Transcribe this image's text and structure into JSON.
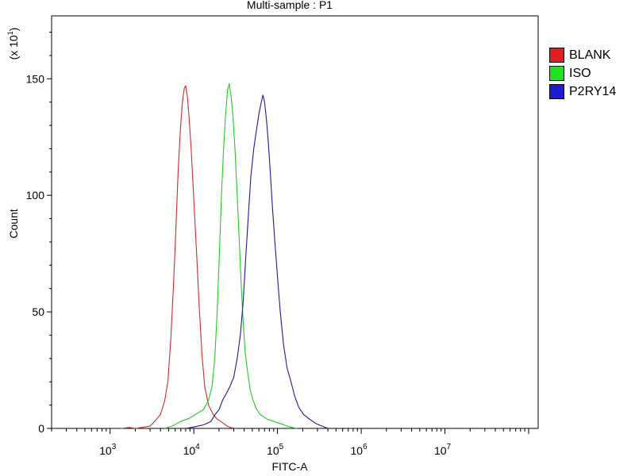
{
  "chart_data": {
    "type": "line",
    "title": "Multi-sample : P1",
    "xlabel": "FITC-A",
    "ylabel": "Count",
    "y_multiplier_label": "(x 10",
    "y_multiplier_exp": "1",
    "x_scale": "log",
    "xlim": [
      200,
      130000000
    ],
    "ylim": [
      0,
      177
    ],
    "x_ticks": [
      {
        "base": "10",
        "exp": "3",
        "value": 1000
      },
      {
        "base": "10",
        "exp": "4",
        "value": 10000
      },
      {
        "base": "10",
        "exp": "5",
        "value": 100000
      },
      {
        "base": "10",
        "exp": "6",
        "value": 1000000
      },
      {
        "base": "10",
        "exp": "7",
        "value": 10000000
      }
    ],
    "y_ticks": [
      {
        "label": "0",
        "value": 0
      },
      {
        "label": "50",
        "value": 50
      },
      {
        "label": "100",
        "value": 100
      },
      {
        "label": "150",
        "value": 150
      }
    ],
    "legend_position": "right",
    "series": [
      {
        "name": "BLANK",
        "color": "#d42a2a",
        "points": [
          [
            1350,
            0
          ],
          [
            1700,
            0.4
          ],
          [
            2000,
            0
          ],
          [
            2600,
            0.6
          ],
          [
            3000,
            1
          ],
          [
            3400,
            3
          ],
          [
            4000,
            6
          ],
          [
            4500,
            12
          ],
          [
            4900,
            20
          ],
          [
            5300,
            38
          ],
          [
            5700,
            60
          ],
          [
            6100,
            85
          ],
          [
            6500,
            110
          ],
          [
            6900,
            128
          ],
          [
            7300,
            140
          ],
          [
            7700,
            146
          ],
          [
            8000,
            147
          ],
          [
            8400,
            142
          ],
          [
            8800,
            133
          ],
          [
            9300,
            120
          ],
          [
            10000,
            98
          ],
          [
            10800,
            75
          ],
          [
            11600,
            52
          ],
          [
            12500,
            32
          ],
          [
            13500,
            18
          ],
          [
            15000,
            10
          ],
          [
            17000,
            6
          ],
          [
            19000,
            4
          ],
          [
            22000,
            2.5
          ],
          [
            25000,
            1
          ],
          [
            28000,
            0.3
          ],
          [
            32000,
            0
          ]
        ]
      },
      {
        "name": "ISO",
        "color": "#21cc21",
        "points": [
          [
            4500,
            0
          ],
          [
            5500,
            1
          ],
          [
            7000,
            3
          ],
          [
            9000,
            4.5
          ],
          [
            11000,
            6.5
          ],
          [
            13000,
            8
          ],
          [
            15000,
            12
          ],
          [
            16500,
            18
          ],
          [
            17800,
            30
          ],
          [
            19000,
            50
          ],
          [
            20200,
            75
          ],
          [
            21400,
            100
          ],
          [
            22700,
            120
          ],
          [
            24000,
            135
          ],
          [
            25300,
            145
          ],
          [
            26500,
            148
          ],
          [
            28000,
            142
          ],
          [
            29500,
            133
          ],
          [
            31000,
            120
          ],
          [
            33000,
            100
          ],
          [
            35000,
            80
          ],
          [
            37000,
            60
          ],
          [
            39000,
            45
          ],
          [
            41000,
            33
          ],
          [
            44000,
            24
          ],
          [
            47000,
            17
          ],
          [
            50000,
            13
          ],
          [
            55000,
            9
          ],
          [
            62000,
            6
          ],
          [
            75000,
            4
          ],
          [
            90000,
            3
          ],
          [
            110000,
            2
          ],
          [
            140000,
            0.6
          ],
          [
            170000,
            0
          ]
        ]
      },
      {
        "name": "P2RY14",
        "color": "#1a1a9c",
        "points": [
          [
            8000,
            0
          ],
          [
            10000,
            0.6
          ],
          [
            13000,
            1.5
          ],
          [
            16000,
            3
          ],
          [
            18000,
            6
          ],
          [
            20000,
            8
          ],
          [
            22000,
            12
          ],
          [
            24500,
            15
          ],
          [
            27000,
            18
          ],
          [
            30000,
            22
          ],
          [
            33000,
            30
          ],
          [
            36000,
            40
          ],
          [
            39000,
            55
          ],
          [
            42000,
            75
          ],
          [
            45000,
            92
          ],
          [
            48000,
            108
          ],
          [
            52000,
            120
          ],
          [
            56000,
            128
          ],
          [
            60000,
            135
          ],
          [
            64000,
            140
          ],
          [
            67000,
            143
          ],
          [
            70000,
            140
          ],
          [
            74000,
            132
          ],
          [
            78000,
            122
          ],
          [
            82000,
            110
          ],
          [
            87000,
            95
          ],
          [
            93000,
            80
          ],
          [
            100000,
            65
          ],
          [
            108000,
            50
          ],
          [
            118000,
            36
          ],
          [
            130000,
            26
          ],
          [
            145000,
            20
          ],
          [
            160000,
            14
          ],
          [
            180000,
            9
          ],
          [
            205000,
            6
          ],
          [
            240000,
            4
          ],
          [
            290000,
            2
          ],
          [
            340000,
            1
          ],
          [
            400000,
            0
          ]
        ]
      }
    ]
  }
}
